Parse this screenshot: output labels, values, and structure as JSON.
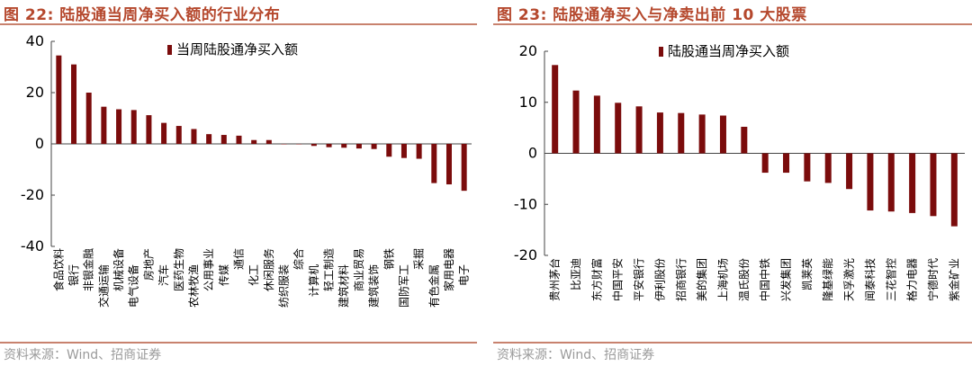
{
  "charts": [
    {
      "title": "图 22:  陆股通当周净买入额的行业分布",
      "source": "资料来源：Wind、招商证券",
      "chart_data": {
        "type": "bar",
        "legend": "当周陆股通净买入额",
        "legend_position": "top-right",
        "ylim": [
          -40,
          40
        ],
        "yticks": [
          40,
          20,
          0,
          -20,
          -40
        ],
        "bar_color": "#7b0c0c",
        "categories": [
          "食品饮料",
          "银行",
          "非银金融",
          "交通运输",
          "机械设备",
          "电气设备",
          "房地产",
          "汽车",
          "医药生物",
          "农林牧渔",
          "公用事业",
          "传媒",
          "通信",
          "化工",
          "休闲服务",
          "纺织服装",
          "综合",
          "计算机",
          "轻工制造",
          "建筑材料",
          "商业贸易",
          "建筑装饰",
          "钢铁",
          "国防军工",
          "采掘",
          "有色金属",
          "家用电器",
          "电子"
        ],
        "values": [
          34.5,
          31,
          20,
          14.5,
          13.5,
          13.2,
          11.2,
          8.2,
          7,
          5.8,
          3.8,
          3.5,
          3.2,
          1.5,
          1.5,
          0,
          0,
          -0.8,
          -1.3,
          -1.5,
          -1.8,
          -2.0,
          -5.0,
          -5.5,
          -5.8,
          -15.3,
          -15.8,
          -18.3
        ]
      }
    },
    {
      "title": "图 23:  陆股通净买入与净卖出前 10 大股票",
      "source": "资料来源：Wind、招商证券",
      "chart_data": {
        "type": "bar",
        "legend": "陆股通当周净买入额",
        "legend_position": "top-right",
        "ylim": [
          -20,
          20
        ],
        "yticks": [
          20,
          10,
          0,
          -10,
          -20
        ],
        "bar_color": "#7b0c0c",
        "categories": [
          "贵州茅台",
          "比亚迪",
          "东方财富",
          "中国平安",
          "平安银行",
          "伊利股份",
          "招商银行",
          "美的集团",
          "上海机场",
          "温氏股份",
          "中国中铁",
          "兴发集团",
          "凯莱英",
          "隆基绿能",
          "天孚激光",
          "闻泰科技",
          "三花智控",
          "格力电器",
          "宁德时代",
          "紫金矿业"
        ],
        "values": [
          17.3,
          12.3,
          11.3,
          9.9,
          9.2,
          8.0,
          7.9,
          7.6,
          7.4,
          5.2,
          -3.8,
          -3.8,
          -5.5,
          -5.8,
          -7.0,
          -11.2,
          -11.4,
          -11.7,
          -12.3,
          -14.3
        ]
      }
    }
  ]
}
